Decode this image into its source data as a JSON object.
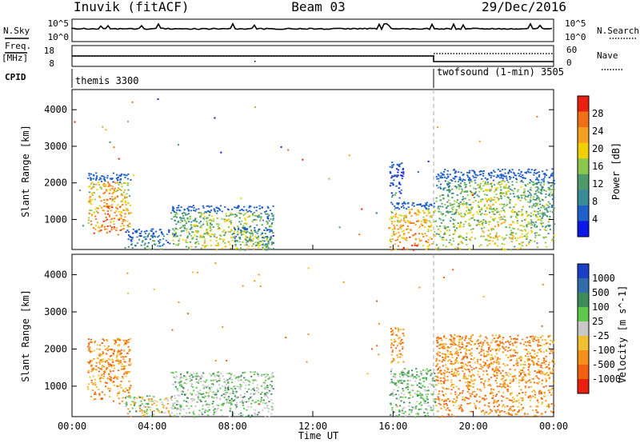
{
  "header": {
    "station": "Inuvik (fitACF)",
    "beam": "Beam 03",
    "date": "29/Dec/2016"
  },
  "top_panels": {
    "nsky_label": "N.Sky",
    "nsky_ticks": [
      "10^5",
      "10^0"
    ],
    "nsearch_label": "N.Search",
    "nsearch_ticks": [
      "10^5",
      "10^0"
    ],
    "freq_label": "Freq.",
    "freq_unit": "[MHz]",
    "freq_ticks": [
      "18",
      "8"
    ],
    "nave_label": "Nave",
    "nave_ticks": [
      "60",
      "0"
    ],
    "cpid_label": "CPID",
    "cpid_segments": [
      {
        "name": "themis 3300",
        "start_h": 0,
        "end_h": 18
      },
      {
        "name": "twofsound (1-min) 3505",
        "start_h": 18,
        "end_h": 24
      }
    ]
  },
  "chart_data": [
    {
      "type": "heatmap",
      "name": "power-panel",
      "xlabel": "",
      "ylabel": "Slant Range [km]",
      "xlim": [
        0,
        24
      ],
      "ylim": [
        180,
        4550
      ],
      "yticks": [
        1000,
        2000,
        3000,
        4000
      ],
      "colorbar": {
        "label": "Power [dB]",
        "range": [
          0,
          32
        ],
        "ticks": [
          4,
          8,
          12,
          16,
          20,
          24,
          28
        ],
        "colors": [
          "#0a18e8",
          "#1f5fc8",
          "#3a8a9a",
          "#4e9a68",
          "#8cc850",
          "#f0d000",
          "#f5a020",
          "#f07018",
          "#e82010"
        ]
      },
      "echo_regions": [
        {
          "x": [
            0.75,
            2.9
          ],
          "y": [
            600,
            2300
          ],
          "level": "high"
        },
        {
          "x": [
            2.6,
            4.9
          ],
          "y": [
            200,
            760
          ],
          "level": "low-moderate"
        },
        {
          "x": [
            4.9,
            10.0
          ],
          "y": [
            180,
            1400
          ],
          "level": "moderate-high"
        },
        {
          "x": [
            8.0,
            10.0
          ],
          "y": [
            180,
            800
          ],
          "level": "moderate"
        },
        {
          "x": [
            15.8,
            16.5
          ],
          "y": [
            1600,
            2600
          ],
          "level": "low"
        },
        {
          "x": [
            15.8,
            18.1
          ],
          "y": [
            180,
            1500
          ],
          "level": "high"
        },
        {
          "x": [
            18.1,
            24.0
          ],
          "y": [
            180,
            2400
          ],
          "level": "moderate-high"
        }
      ]
    },
    {
      "type": "heatmap",
      "name": "velocity-panel",
      "xlabel": "Time UT",
      "ylabel": "Slant Range [km]",
      "xlim": [
        0,
        24
      ],
      "ylim": [
        180,
        4550
      ],
      "xticks": [
        "00:00",
        "04:00",
        "08:00",
        "12:00",
        "16:00",
        "20:00",
        "00:00"
      ],
      "yticks": [
        1000,
        2000,
        3000,
        4000
      ],
      "colorbar": {
        "label": "Velocity [m s^-1]",
        "ticks": [
          1000,
          500,
          100,
          25,
          -25,
          -100,
          -500,
          -1000
        ],
        "colors": [
          "#1a40c8",
          "#2f6ea8",
          "#3c8c5a",
          "#5ec84a",
          "#c8c8c8",
          "#f0c030",
          "#f5901a",
          "#f06010",
          "#e82010"
        ]
      },
      "echo_regions": [
        {
          "x": [
            0.75,
            2.9
          ],
          "y": [
            600,
            2300
          ],
          "velocity_sign": "negative"
        },
        {
          "x": [
            2.6,
            4.9
          ],
          "y": [
            200,
            760
          ],
          "velocity_sign": "mixed"
        },
        {
          "x": [
            4.9,
            10.0
          ],
          "y": [
            180,
            1400
          ],
          "velocity_sign": "near-zero/positive"
        },
        {
          "x": [
            15.8,
            16.5
          ],
          "y": [
            1600,
            2600
          ],
          "velocity_sign": "negative"
        },
        {
          "x": [
            15.8,
            18.1
          ],
          "y": [
            180,
            1500
          ],
          "velocity_sign": "positive"
        },
        {
          "x": [
            18.1,
            24.0
          ],
          "y": [
            180,
            2400
          ],
          "velocity_sign": "negative"
        }
      ]
    }
  ]
}
